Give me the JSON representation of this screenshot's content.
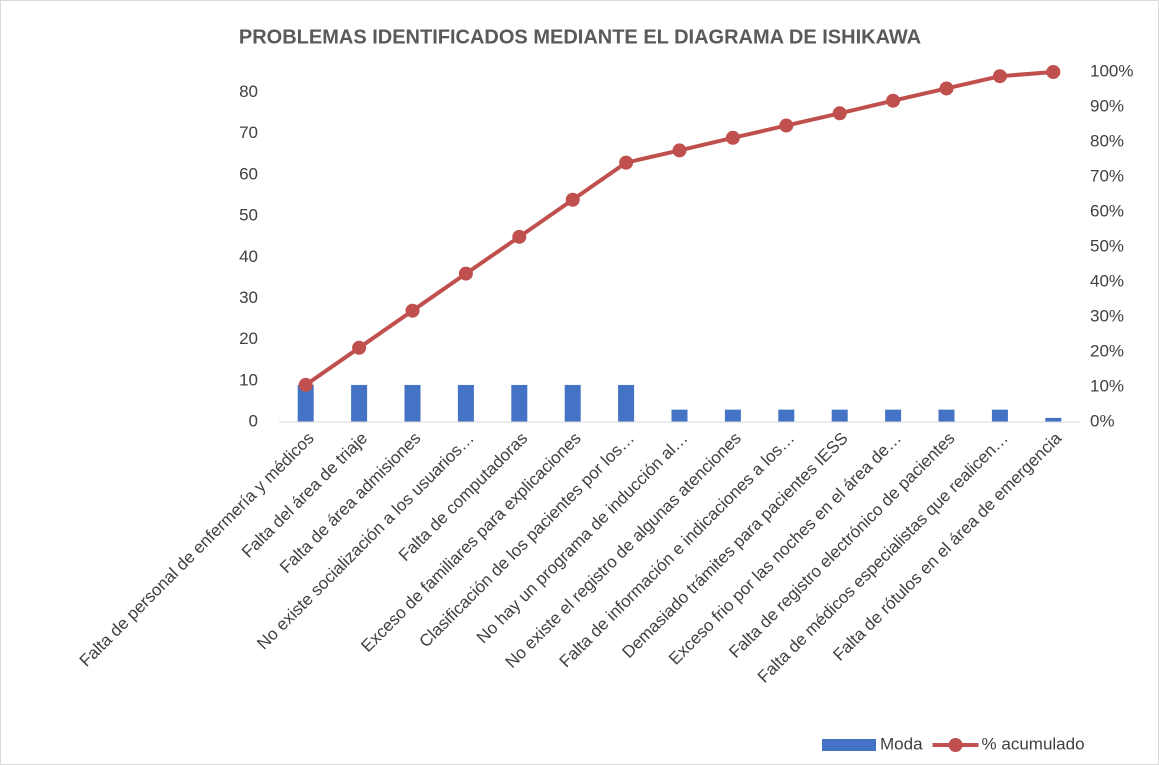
{
  "chart_data": {
    "type": "pareto",
    "title": "PROBLEMAS IDENTIFICADOS MEDIANTE EL DIAGRAMA DE ISHIKAWA",
    "categories": [
      "Falta de personal de enfermería y médicos",
      "Falta del área de triaje",
      "Falta de área admisiones",
      "No existe socialización a los usuarios…",
      "Falta de computadoras",
      "Exceso de familiares para explicaciones",
      "Clasificación de los pacientes por los…",
      "No hay un programa de inducción al…",
      "No existe el registro de algunas atenciones",
      "Falta de información e indicaciones a los…",
      "Demasiado trámites para pacientes IESS",
      "Exceso frio por las noches en el área de…",
      "Falta de registro electrónico de pacientes",
      "Falta de médicos especialistas que realicen…",
      "Falta de rótulos en el área de emergencia"
    ],
    "series": [
      {
        "name": "Moda",
        "type": "bar",
        "color": "#4472c4",
        "values": [
          9,
          9,
          9,
          9,
          9,
          9,
          9,
          3,
          3,
          3,
          3,
          3,
          3,
          3,
          1
        ]
      },
      {
        "name": "% acumulado",
        "type": "line",
        "axis": "y2",
        "color": "#c0504d",
        "values": [
          10.6,
          21.2,
          31.8,
          42.4,
          52.9,
          63.5,
          74.1,
          77.6,
          81.2,
          84.7,
          88.2,
          91.8,
          95.3,
          98.8,
          100
        ]
      }
    ],
    "ylim": [
      0,
      85
    ],
    "yticks": [
      0,
      10,
      20,
      30,
      40,
      50,
      60,
      70,
      80
    ],
    "y2lim": [
      0,
      100
    ],
    "y2ticks": [
      {
        "value": 0,
        "label": "0%"
      },
      {
        "value": 10,
        "label": "10%"
      },
      {
        "value": 20,
        "label": "20%"
      },
      {
        "value": 30,
        "label": "30%"
      },
      {
        "value": 40,
        "label": "40%"
      },
      {
        "value": 50,
        "label": "50%"
      },
      {
        "value": 60,
        "label": "60%"
      },
      {
        "value": 70,
        "label": "70%"
      },
      {
        "value": 80,
        "label": "80%"
      },
      {
        "value": 90,
        "label": "90%"
      },
      {
        "value": 100,
        "label": "100%"
      }
    ],
    "grid": false,
    "legend": "bottom-right"
  }
}
